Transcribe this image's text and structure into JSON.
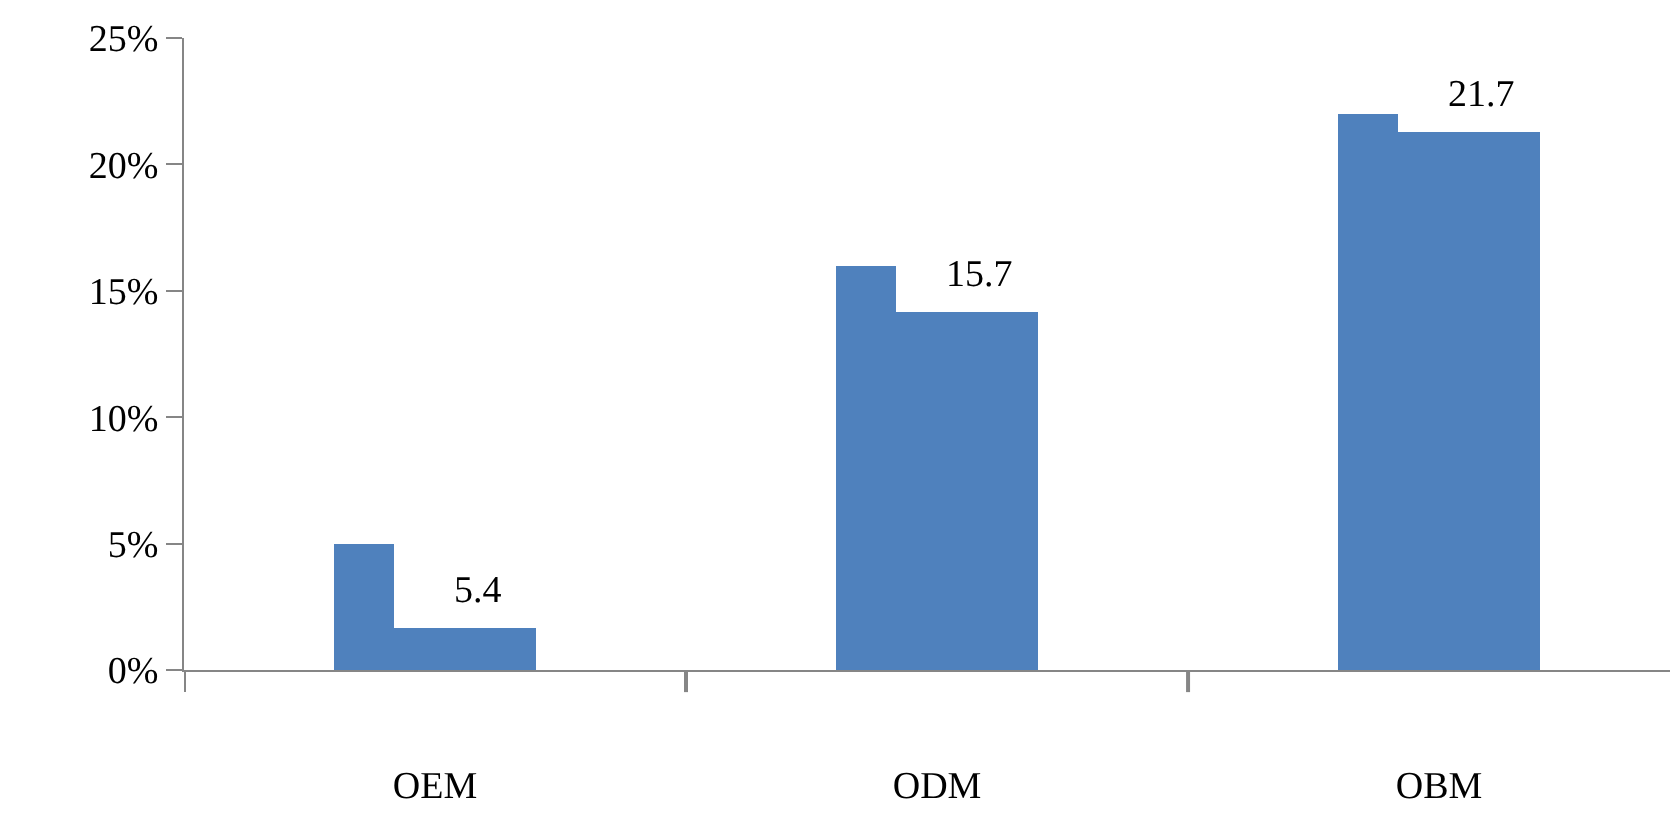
{
  "chart_data": {
    "type": "bar",
    "categories": [
      "OEM",
      "ODM",
      "OBM"
    ],
    "series": [
      {
        "color": "#4f81bd",
        "values": [
          5.0,
          16.0,
          22.0
        ]
      },
      {
        "color": "#4f81bd",
        "values": [
          1.7,
          14.2,
          21.3
        ]
      }
    ],
    "ylim": [
      0,
      25
    ],
    "yticks": [
      {
        "value": 0,
        "label": "0%"
      },
      {
        "value": 5,
        "label": "5%"
      },
      {
        "value": 10,
        "label": "10%"
      },
      {
        "value": 15,
        "label": "15%"
      },
      {
        "value": 20,
        "label": "20%"
      },
      {
        "value": 25,
        "label": "25%"
      }
    ],
    "annotations": [
      "5.4",
      "15.7",
      "21.7"
    ]
  }
}
